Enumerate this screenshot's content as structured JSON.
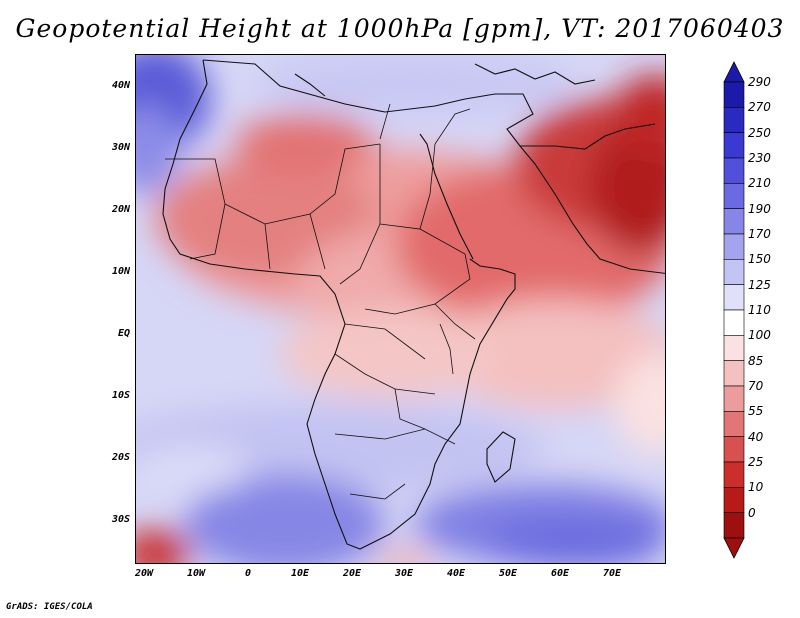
{
  "title": "Geopotential Height at 1000hPa [gpm], VT: 2017060403",
  "credit": "GrADS: IGES/COLA",
  "map": {
    "lat_labels": [
      "40N",
      "30N",
      "20N",
      "10N",
      "EQ",
      "10S",
      "20S",
      "30S"
    ],
    "lon_labels": [
      "20W",
      "10W",
      "0",
      "10E",
      "20E",
      "30E",
      "40E",
      "50E",
      "60E",
      "70E"
    ]
  },
  "colorbar": {
    "labels": [
      "290",
      "270",
      "250",
      "230",
      "210",
      "190",
      "170",
      "150",
      "125",
      "110",
      "100",
      "85",
      "70",
      "55",
      "40",
      "25",
      "10",
      "0"
    ],
    "colors": [
      "#1c1aa8",
      "#2b2ac0",
      "#3a3ad2",
      "#5050da",
      "#6a6ae2",
      "#8686e8",
      "#a3a3ee",
      "#c3c3f4",
      "#e0e0f9",
      "#ffffff",
      "#fbe1e1",
      "#f5c0c0",
      "#ec9c9c",
      "#e27676",
      "#d85050",
      "#cc2e2e",
      "#b81a1a",
      "#9e0f0f"
    ]
  }
}
